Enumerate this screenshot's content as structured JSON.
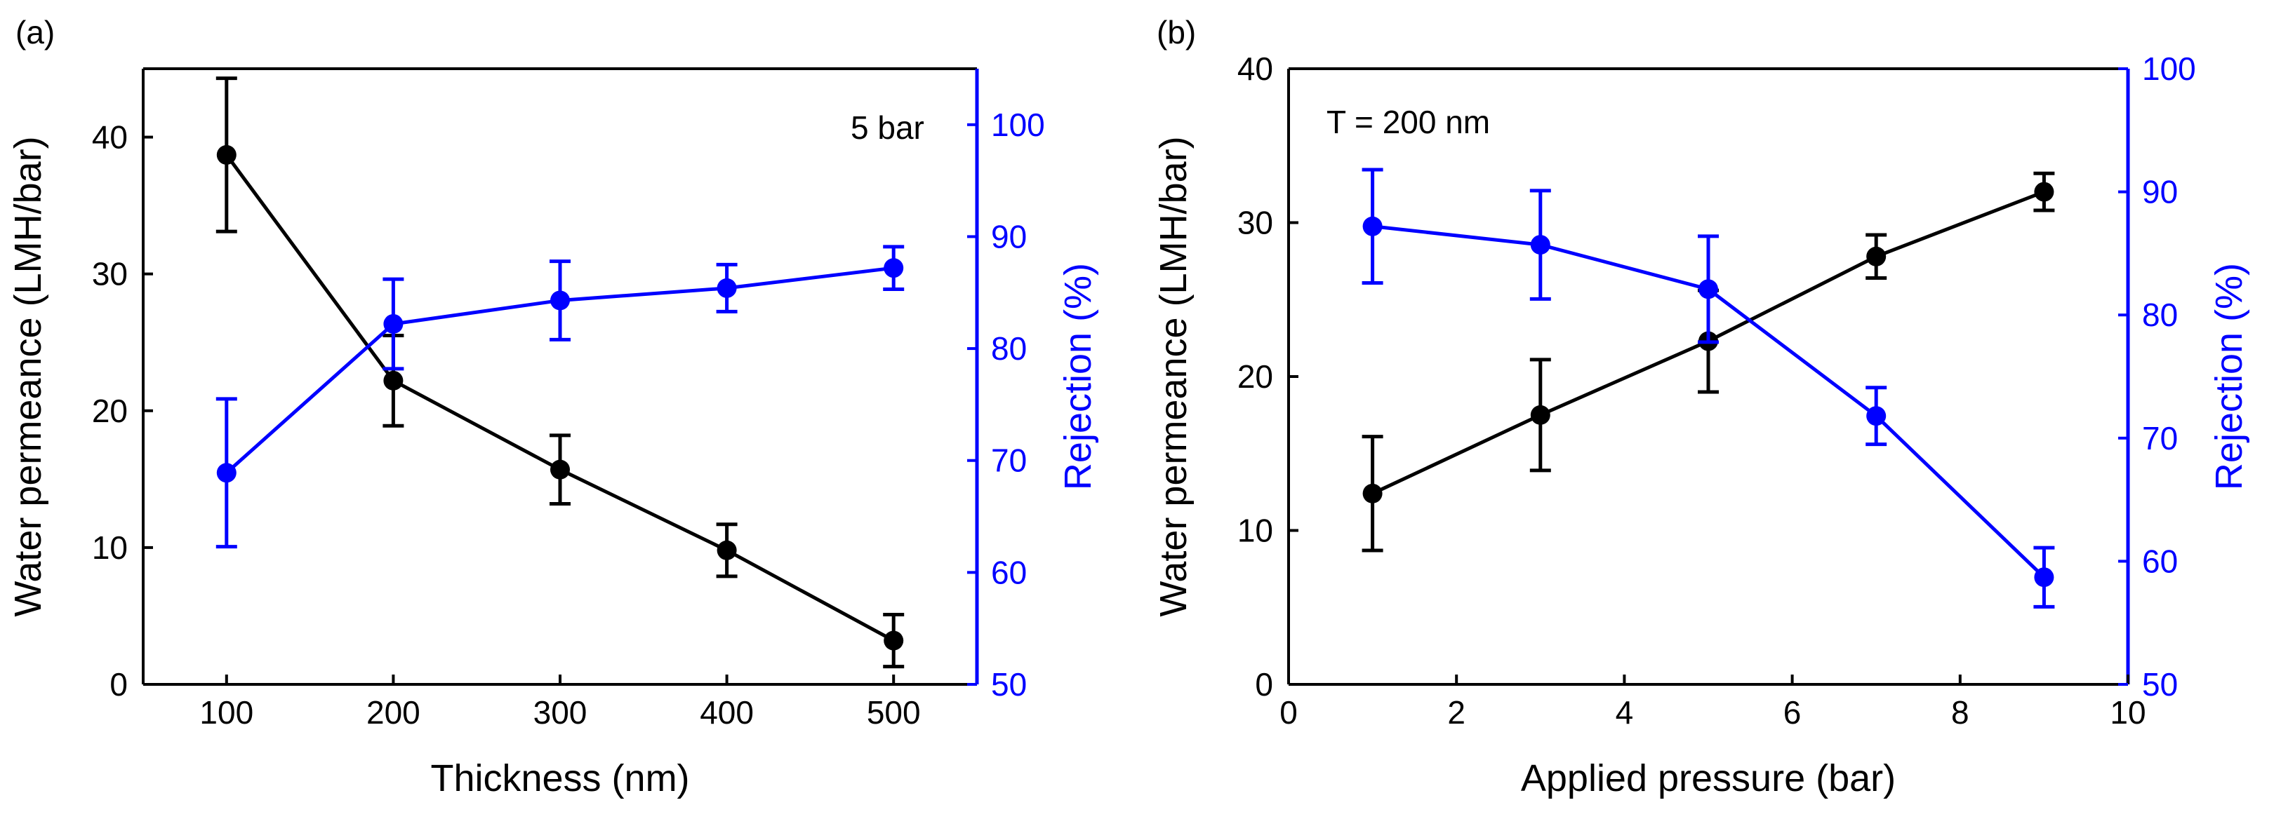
{
  "chart_data": [
    {
      "type": "line",
      "panel_label": "(a)",
      "xlabel": "Thickness (nm)",
      "ylabel_left": "Water permeance (LMH/bar)",
      "ylabel_right": "Rejection (%)",
      "annotation": "5 bar",
      "xlim": [
        50,
        550
      ],
      "ylim_left": [
        0,
        45
      ],
      "ylim_right": [
        50,
        105
      ],
      "x_ticks": [
        100,
        200,
        300,
        400,
        500
      ],
      "y_ticks_left": [
        0,
        10,
        20,
        30,
        40
      ],
      "y_ticks_right": [
        50,
        60,
        70,
        80,
        90,
        100
      ],
      "grid": false,
      "series": [
        {
          "name": "Water permeance",
          "axis": "left",
          "color": "#000000",
          "x": [
            100,
            200,
            300,
            400,
            500
          ],
          "y": [
            38.7,
            22.2,
            15.7,
            9.8,
            3.2
          ],
          "err": [
            5.6,
            3.3,
            2.5,
            1.9,
            1.9
          ]
        },
        {
          "name": "Rejection",
          "axis": "right",
          "color": "#0000ff",
          "x": [
            100,
            200,
            300,
            400,
            500
          ],
          "y": [
            68.9,
            82.2,
            84.3,
            85.4,
            87.2
          ],
          "err": [
            6.6,
            4.0,
            3.5,
            2.1,
            1.9
          ]
        }
      ]
    },
    {
      "type": "line",
      "panel_label": "(b)",
      "xlabel": "Applied pressure (bar)",
      "ylabel_left": "Water permeance (LMH/bar)",
      "ylabel_right": "Rejection (%)",
      "annotation": "T = 200 nm",
      "xlim": [
        0,
        10
      ],
      "ylim_left": [
        0,
        40
      ],
      "ylim_right": [
        50,
        100
      ],
      "x_ticks": [
        0,
        2,
        4,
        6,
        8,
        10
      ],
      "y_ticks_left": [
        0,
        10,
        20,
        30,
        40
      ],
      "y_ticks_right": [
        50,
        60,
        70,
        80,
        90,
        100
      ],
      "grid": false,
      "series": [
        {
          "name": "Water permeance",
          "axis": "left",
          "color": "#000000",
          "x": [
            1,
            3,
            5,
            7,
            9
          ],
          "y": [
            12.4,
            17.5,
            22.3,
            27.8,
            32.0
          ],
          "err": [
            3.7,
            3.6,
            3.3,
            1.4,
            1.2
          ]
        },
        {
          "name": "Rejection",
          "axis": "right",
          "color": "#0000ff",
          "x": [
            1,
            3,
            5,
            7,
            9
          ],
          "y": [
            87.2,
            85.7,
            82.1,
            71.8,
            58.7
          ],
          "err": [
            4.6,
            4.4,
            4.3,
            2.3,
            2.4
          ]
        }
      ]
    }
  ]
}
